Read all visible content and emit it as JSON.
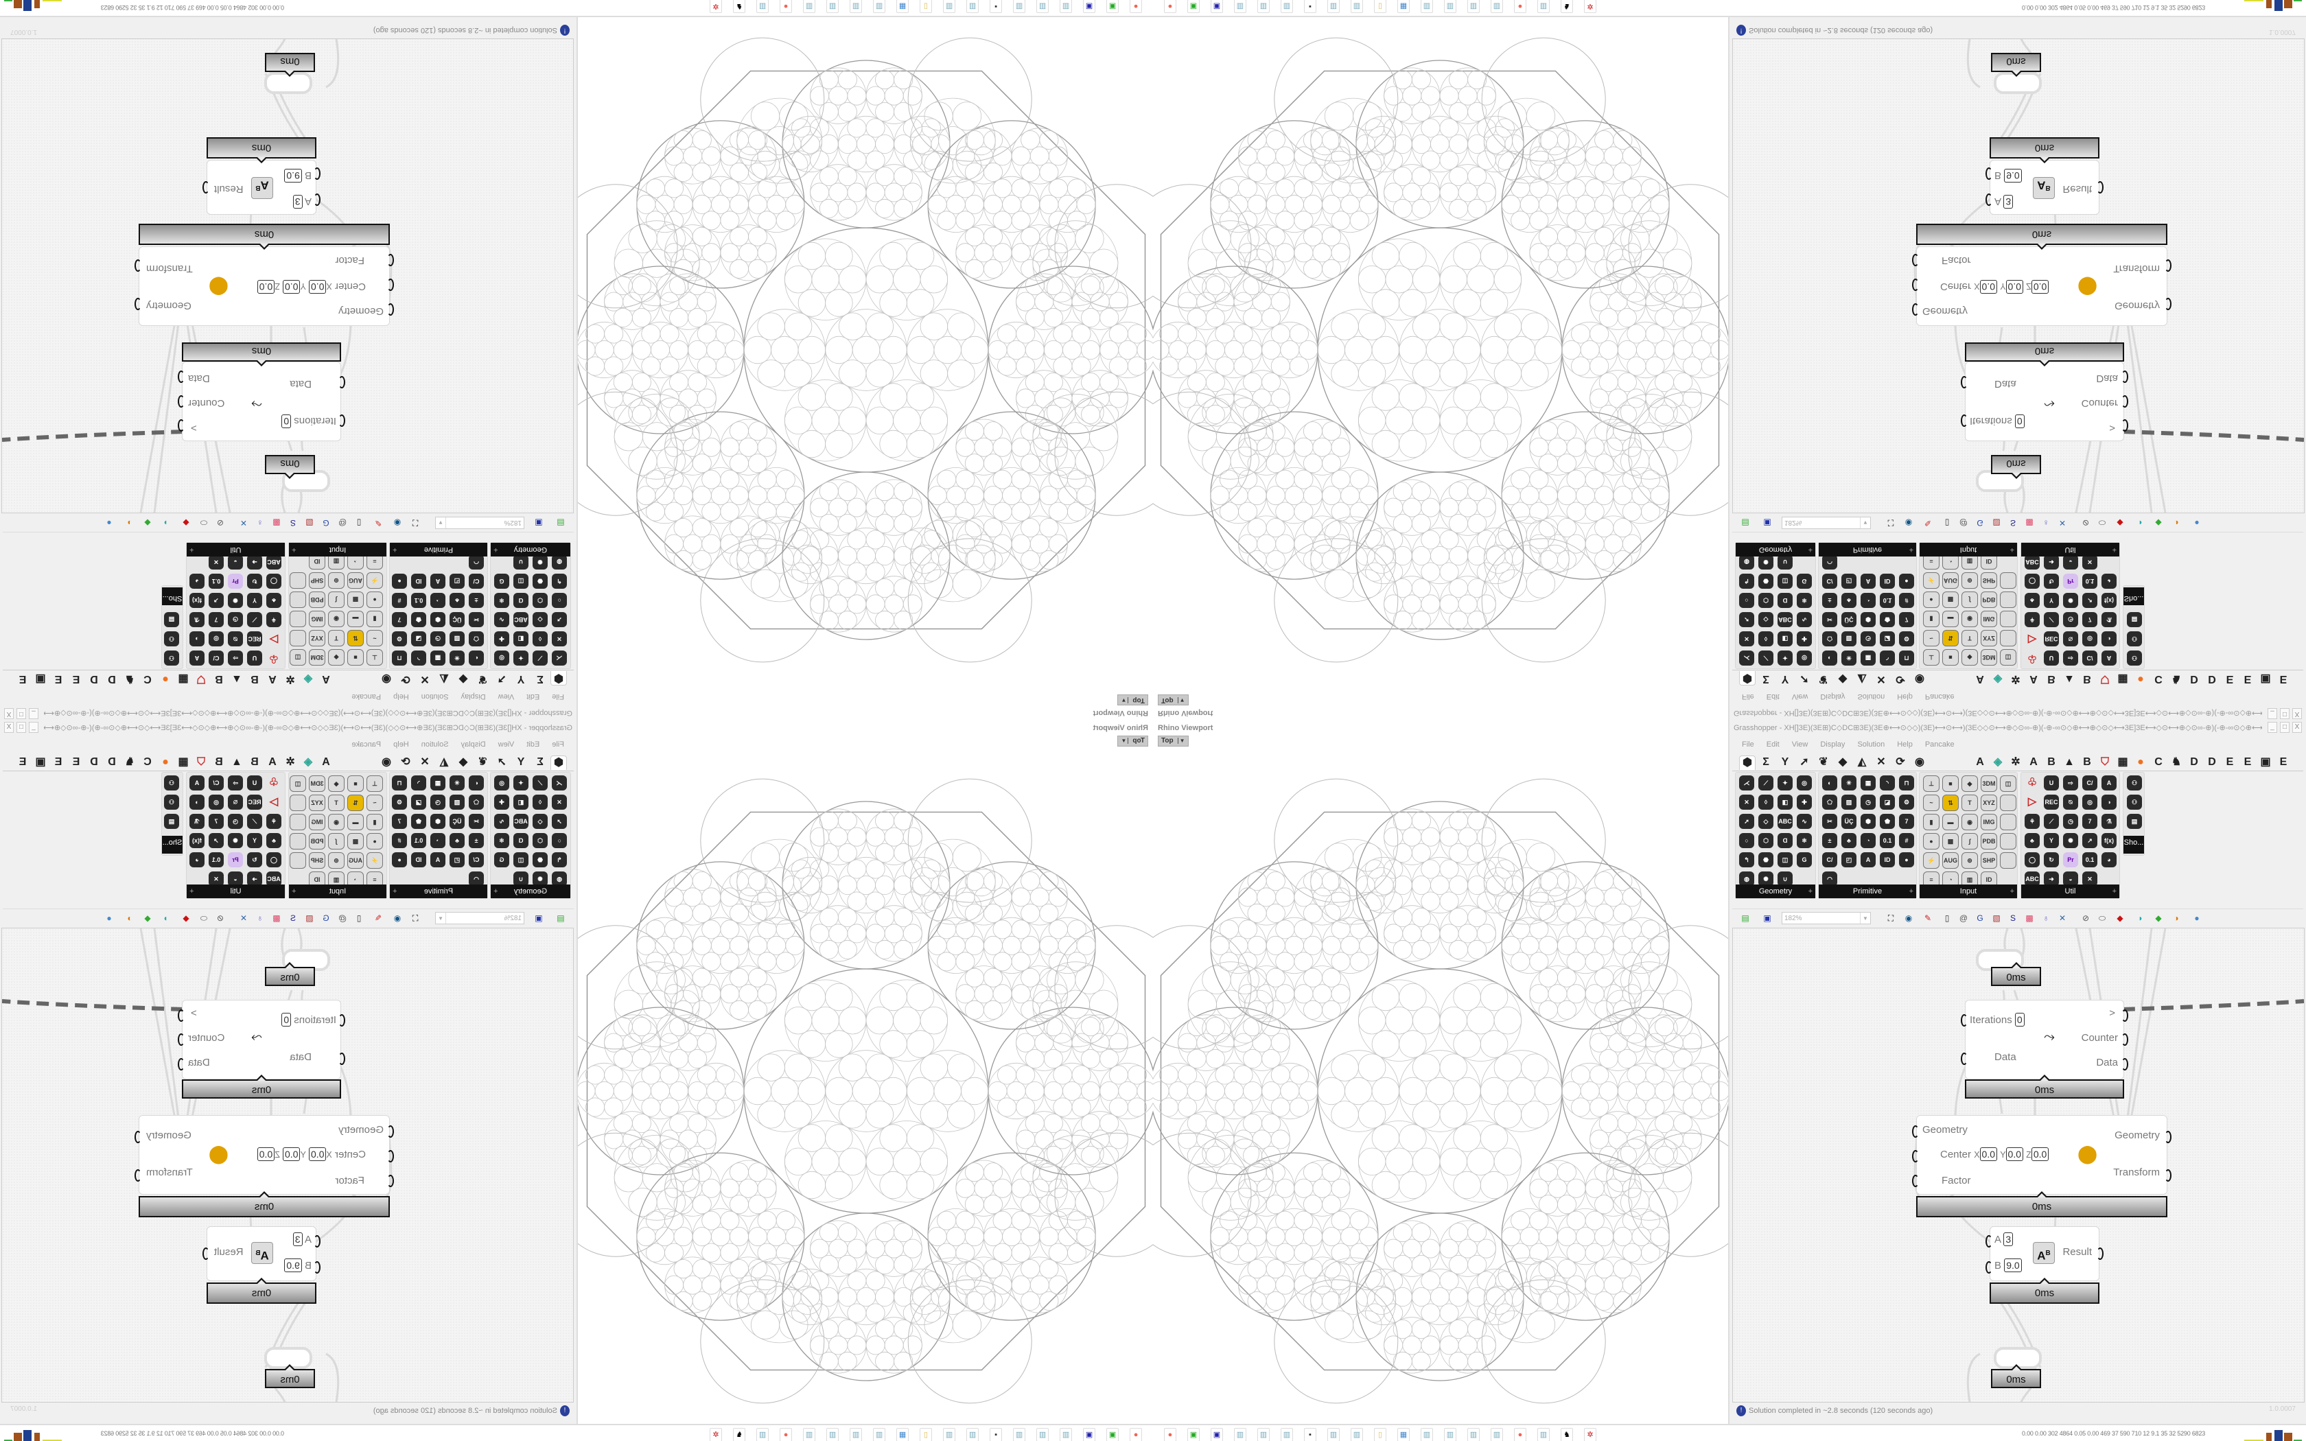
{
  "viewport": {
    "title": "Rhino Viewport",
    "view": "Top"
  },
  "grasshopper": {
    "title": "Grasshopper - XH[]3E)(3E⊞)C◇DC⊞3E)(3E⊕⟷⊙◇◇)(3E)⟷⊙⟷)(3E◇◇⊙⟷⊕◇⊙∞-⊕)(-⊕-∞⊙◇⊕⟷⊕◇⊙◇⟷3E]3E⟷◇⊙⟷⊕◇⊙∞-⊕)(-⊕-∞⊙◇⊕⟷⊙◇◇)(3E)⟷⊙...",
    "window_controls": [
      "_",
      "□",
      "X"
    ],
    "menu": [
      "File",
      "Edit",
      "View",
      "Display",
      "Solution",
      "Help",
      "Pancake"
    ],
    "tabs": [
      {
        "icon": "params-hexagon-icon",
        "glyph": "⬢"
      },
      {
        "icon": "maths-sigma-icon",
        "glyph": "Σ"
      },
      {
        "icon": "sets-icon",
        "glyph": "Y"
      },
      {
        "icon": "vector-icon",
        "glyph": "➚"
      },
      {
        "icon": "curve-icon",
        "glyph": "❦"
      },
      {
        "icon": "surface-icon",
        "glyph": "◆"
      },
      {
        "icon": "mesh-icon",
        "glyph": "◭"
      },
      {
        "icon": "intersect-icon",
        "glyph": "✕"
      },
      {
        "icon": "transform-icon",
        "glyph": "⟳"
      },
      {
        "icon": "display-eye-icon",
        "glyph": "◉"
      },
      {
        "icon": "plugin-a-icon",
        "glyph": "A"
      },
      {
        "icon": "plugin-leaf-icon",
        "glyph": "◈",
        "color": "#3a9"
      },
      {
        "icon": "plugin-gear-icon",
        "glyph": "✲"
      },
      {
        "icon": "plugin-a2-icon",
        "glyph": "A"
      },
      {
        "icon": "plugin-b-icon",
        "glyph": "B"
      },
      {
        "icon": "plugin-mountain-icon",
        "glyph": "▲"
      },
      {
        "icon": "plugin-b2-icon",
        "glyph": "B"
      },
      {
        "icon": "plugin-shield-icon",
        "glyph": "⛉",
        "color": "#c33"
      },
      {
        "icon": "plugin-grid-icon",
        "glyph": "▦"
      },
      {
        "icon": "plugin-orange-circle-icon",
        "glyph": "●",
        "color": "#f07020"
      },
      {
        "icon": "plugin-c-icon",
        "glyph": "C"
      },
      {
        "icon": "plugin-rooster-icon",
        "glyph": "♞"
      },
      {
        "icon": "plugin-d-icon",
        "glyph": "D"
      },
      {
        "icon": "plugin-d2-icon",
        "glyph": "D"
      },
      {
        "icon": "plugin-e-icon",
        "glyph": "E"
      },
      {
        "icon": "plugin-e2-icon",
        "glyph": "E"
      },
      {
        "icon": "plugin-grid2-icon",
        "glyph": "▣"
      },
      {
        "icon": "plugin-e3-icon",
        "glyph": "E"
      }
    ],
    "panels": [
      {
        "label": "Geometry",
        "icons": [
          "⋌",
          "⟋",
          "✦",
          "◎",
          "✕",
          "◊",
          "◧",
          "✚",
          "➚",
          "◇",
          "ABC",
          "∿",
          "○",
          "⬡",
          "Ɑ",
          "⚛",
          "↰",
          "⬣",
          "◫",
          "G",
          "◍",
          "✺",
          "∪"
        ]
      },
      {
        "label": "Primitive",
        "icons": [
          "◐",
          "✳",
          "▦",
          "◝",
          "⊓",
          "⬠",
          "▨",
          "◷",
          "◪",
          "⚙",
          "✂",
          "ÜÇ",
          "⬢",
          "⬟",
          "7",
          "±",
          "♣",
          "◔",
          "0.1",
          "#",
          "C/",
          "◰",
          "A",
          "ID",
          "●",
          "◠"
        ]
      },
      {
        "label": "Input",
        "icons": [
          "⊥",
          "■",
          "◆",
          "3DM",
          "◫",
          "~",
          "⇅",
          "T",
          "XYZ",
          "",
          "▮",
          "▬",
          "◉",
          "IMG",
          "",
          "●",
          "▩",
          "∫",
          "PDB",
          "",
          "⚡",
          "AUG 20",
          "⊚",
          "SHP",
          "",
          "≡",
          "◔",
          "▥",
          "ID"
        ]
      },
      {
        "label": "Util",
        "icons": [
          "♧",
          "U",
          "⇨",
          "C/",
          "A",
          "▷",
          "REC",
          "⍉",
          "◎",
          "◑",
          "⚘",
          "⟋",
          "◷",
          "7",
          "⚗",
          "♣",
          "Y",
          "✺",
          "↗",
          "f(x)",
          "◯",
          "↻",
          "Pr",
          "0.1",
          "◕",
          "ABC",
          "➜",
          "◒",
          "✕"
        ]
      },
      {
        "label": "Sho...",
        "icons": [
          "⚇",
          "⚇",
          "▤"
        ]
      }
    ],
    "toolbar": {
      "zoom": "182%",
      "icons": [
        "new-file-icon",
        "save-icon",
        "zoom-extents-icon",
        "preview-eye-icon",
        "sketch-pen-icon",
        "cluster-icon",
        "bake-icon",
        "gha-icon",
        "canvas-icon",
        "search-icon",
        "package-icon",
        "bulb-icon",
        "wire-icon",
        "lock-icon",
        "disable-icon",
        "red-cube-icon",
        "teal-shape-icon",
        "green-shape-icon",
        "sphere-icon",
        "blue-sphere-icon"
      ]
    },
    "components": {
      "top_param": {
        "time": "0ms"
      },
      "loop": {
        "inputs": [
          "Iterations",
          "Data"
        ],
        "iterations_value": "0",
        "outputs": [
          ">",
          "Counter",
          "Data"
        ],
        "time": "0ms"
      },
      "scale": {
        "inputs": [
          "Geometry",
          "Center",
          "Factor"
        ],
        "center": {
          "x_label": "X",
          "x": "0.0",
          "y_label": "Y",
          "y": "0.0",
          "z_label": "Z",
          "z": "0.0"
        },
        "outputs": [
          "Geometry",
          "Transform"
        ],
        "time": "0ms"
      },
      "power": {
        "inputs": [
          "A",
          "B"
        ],
        "a_value": "3",
        "b_value": "9.0",
        "output": "Result",
        "time": "0ms"
      },
      "bottom_param": {
        "time": "0ms"
      }
    },
    "status": "Solution completed in ~2.8 seconds (120 seconds ago)",
    "version": "1.0.0007"
  },
  "taskbar": {
    "stats": "0.00 0.00 302 4864 0.05 0.00 469 37 590 710 12 9.1 35 32 5290 6823",
    "icons": [
      "firefox-icon",
      "floppy-green-icon",
      "floppy-disk-icon",
      "notepad-icon",
      "notepad-icon",
      "notepad-icon",
      "terminal-icon",
      "notepad-icon",
      "notepad-icon",
      "folder-icon",
      "control-panel-icon",
      "notepad-icon",
      "notepad-icon",
      "notepad-icon",
      "notepad-icon",
      "firefox-icon",
      "notepad-icon",
      "wolf-icon",
      "settings-red-icon"
    ],
    "colors": {
      "bars": [
        "#a0521a",
        "#1f3f8f",
        "#a0521a",
        "#3cb043"
      ]
    }
  }
}
